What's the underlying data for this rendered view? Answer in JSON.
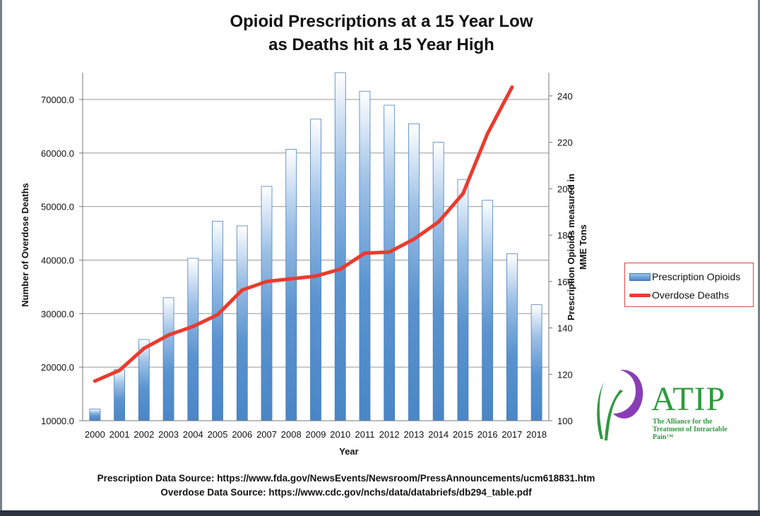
{
  "chart_data": {
    "type": "bar+line",
    "title": [
      "Opioid Prescriptions at a 15 Year Low",
      "as Deaths hit a 15 Year High"
    ],
    "xlabel": "Year",
    "ylabel_left": "Number of Overdose Deaths",
    "ylabel_right": [
      "Prescription Opioids measured in",
      "MME Tons"
    ],
    "categories": [
      "2000",
      "2001",
      "2002",
      "2003",
      "2004",
      "2005",
      "2006",
      "2007",
      "2008",
      "2009",
      "2010",
      "2011",
      "2012",
      "2013",
      "2014",
      "2015",
      "2016",
      "2017",
      "2018"
    ],
    "left_axis": {
      "range": [
        10000,
        75000
      ],
      "ticks": [
        10000,
        20000,
        30000,
        40000,
        50000,
        60000,
        70000
      ],
      "tick_labels": [
        "10000.0",
        "20000.0",
        "30000.0",
        "40000.0",
        "50000.0",
        "60000.0",
        "70000.0"
      ]
    },
    "right_axis": {
      "range": [
        100,
        250
      ],
      "ticks": [
        100,
        120,
        140,
        160,
        180,
        200,
        220,
        240
      ],
      "tick_labels": [
        "100",
        "120",
        "140",
        "160",
        "180",
        "200",
        "220",
        "240"
      ]
    },
    "series": [
      {
        "name": "Prescription Opioids",
        "type": "bar",
        "axis": "right",
        "color": "#4a86c6",
        "values": [
          105,
          122,
          135,
          153,
          170,
          186,
          184,
          201,
          217,
          230,
          250,
          242,
          236,
          228,
          220,
          204,
          195,
          172,
          150
        ]
      },
      {
        "name": "Overdose Deaths",
        "type": "line",
        "axis": "left",
        "color": "#ea3b2e",
        "values": [
          17400,
          19400,
          23500,
          26000,
          27600,
          29800,
          34400,
          36000,
          36500,
          37000,
          38300,
          41300,
          41500,
          43900,
          47100,
          52400,
          63600,
          72300,
          null
        ]
      }
    ],
    "legend": [
      "Prescription Opioids",
      "Overdose Deaths"
    ],
    "legend_position": "right"
  },
  "logo": {
    "word": "ATIP",
    "tagline": [
      "The Alliance for the",
      "Treatment of Intractable Pain™"
    ]
  },
  "sources": {
    "prescription": "Prescription Data Source: https://www.fda.gov/NewsEvents/Newsroom/PressAnnouncements/ucm618831.htm",
    "overdose": "Overdose Data Source:  https://www.cdc.gov/nchs/data/databriefs/db294_table.pdf"
  }
}
